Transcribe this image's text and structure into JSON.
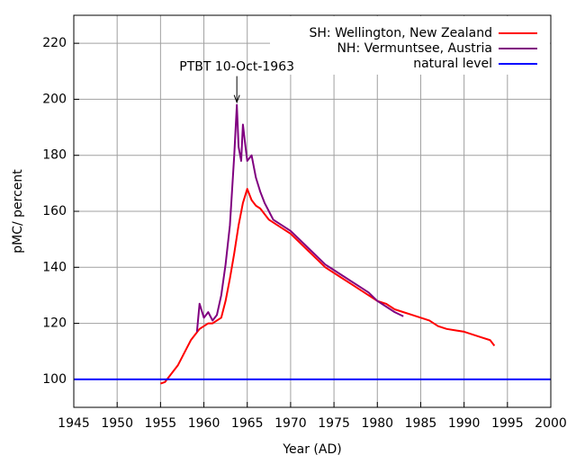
{
  "chart_data": {
    "type": "line",
    "xlabel": "Year (AD)",
    "ylabel": "pMC/ percent",
    "xlim": [
      1945,
      2000
    ],
    "xticks": [
      1945,
      1950,
      1955,
      1960,
      1965,
      1970,
      1975,
      1980,
      1985,
      1990,
      1995,
      2000
    ],
    "ylim": [
      90,
      230
    ],
    "yticks": [
      100,
      120,
      140,
      160,
      180,
      200,
      220
    ],
    "grid": true,
    "legend": "upper right",
    "annotation": {
      "text": "PTBT 10-Oct-1963",
      "x": 1963.8,
      "y": 198
    },
    "series": [
      {
        "name": "SH: Wellington, New Zealand",
        "color": "#ff0000",
        "x": [
          1955,
          1955.5,
          1956,
          1956.5,
          1957,
          1957.5,
          1958,
          1958.5,
          1959,
          1959.5,
          1960,
          1960.5,
          1961,
          1961.5,
          1962,
          1962.5,
          1963,
          1963.5,
          1964,
          1964.5,
          1965,
          1965.5,
          1966,
          1966.5,
          1967,
          1967.5,
          1968,
          1969,
          1970,
          1971,
          1972,
          1973,
          1974,
          1975,
          1976,
          1977,
          1978,
          1979,
          1980,
          1981,
          1982,
          1983,
          1984,
          1985,
          1986,
          1987,
          1988,
          1989,
          1990,
          1991,
          1992,
          1993,
          1993.5
        ],
        "values": [
          98.5,
          99,
          101,
          103,
          105,
          108,
          111,
          114,
          116,
          118,
          119,
          120,
          120,
          121,
          122,
          128,
          136,
          145,
          155,
          163,
          168,
          164,
          162,
          161,
          159,
          157,
          156,
          154,
          152,
          149,
          146,
          143,
          140,
          138,
          136,
          134,
          132,
          130,
          128,
          127,
          125,
          124,
          123,
          122,
          121,
          119,
          118,
          117.5,
          117,
          116,
          115,
          114,
          112
        ]
      },
      {
        "name": "NH: Vermuntsee, Austria",
        "color": "#800080",
        "x": [
          1959.2,
          1959.5,
          1960,
          1960.5,
          1961,
          1961.5,
          1962,
          1962.5,
          1963,
          1963.5,
          1963.8,
          1964,
          1964.3,
          1964.5,
          1964.8,
          1965,
          1965.5,
          1966,
          1966.5,
          1967,
          1967.5,
          1968,
          1969,
          1970,
          1971,
          1972,
          1973,
          1974,
          1975,
          1976,
          1977,
          1978,
          1979,
          1980,
          1981,
          1982,
          1983
        ],
        "values": [
          117,
          127,
          122,
          124,
          121,
          123,
          130,
          141,
          155,
          180,
          198,
          183,
          178,
          191,
          183,
          178,
          180,
          172,
          167,
          163,
          160,
          157,
          155,
          153,
          150,
          147,
          144,
          141,
          139,
          137,
          135,
          133,
          131,
          128,
          126,
          124,
          122.5
        ]
      },
      {
        "name": "natural level",
        "color": "#0000ff",
        "x": [
          1945,
          2000
        ],
        "values": [
          100,
          100
        ]
      }
    ]
  }
}
